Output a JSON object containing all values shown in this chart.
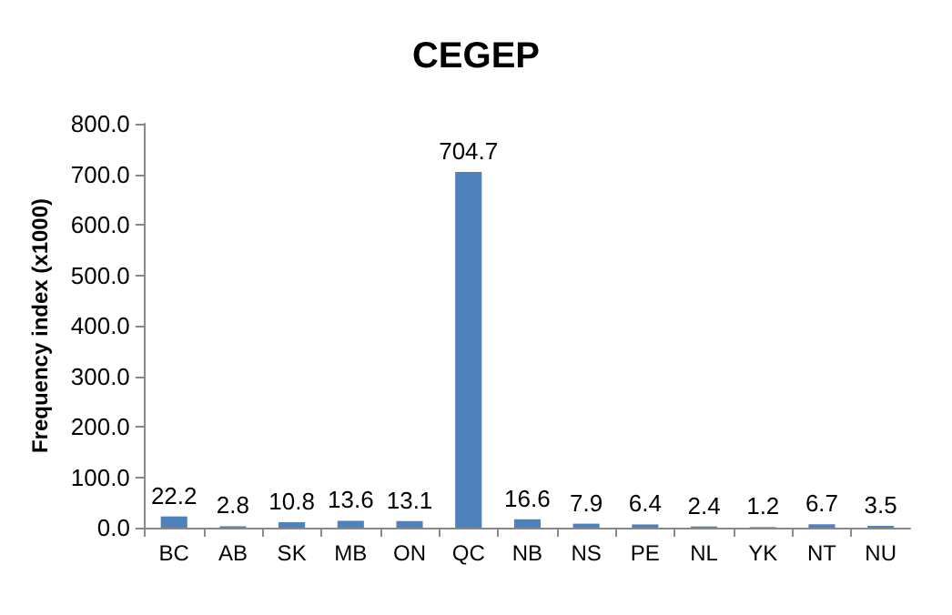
{
  "chart_data": {
    "type": "bar",
    "title": "CEGEP",
    "ylabel": "Frequency index (x1000)",
    "categories": [
      "BC",
      "AB",
      "SK",
      "MB",
      "ON",
      "QC",
      "NB",
      "NS",
      "PE",
      "NL",
      "YK",
      "NT",
      "NU"
    ],
    "values": [
      22.2,
      2.8,
      10.8,
      13.6,
      13.1,
      704.7,
      16.6,
      7.9,
      6.4,
      2.4,
      1.2,
      6.7,
      3.5
    ],
    "color": "#4f81bd",
    "ylim": [
      0,
      800
    ],
    "yticks": [
      {
        "value": 0,
        "label": "0.0"
      },
      {
        "value": 100,
        "label": "100.0"
      },
      {
        "value": 200,
        "label": "200.0"
      },
      {
        "value": 300,
        "label": "300.0"
      },
      {
        "value": 400,
        "label": "400.0"
      },
      {
        "value": 500,
        "label": "500.0"
      },
      {
        "value": 600,
        "label": "600.0"
      },
      {
        "value": 700,
        "label": "700.0"
      },
      {
        "value": 800,
        "label": "800.0"
      }
    ],
    "data_labels": true,
    "grid": false
  }
}
